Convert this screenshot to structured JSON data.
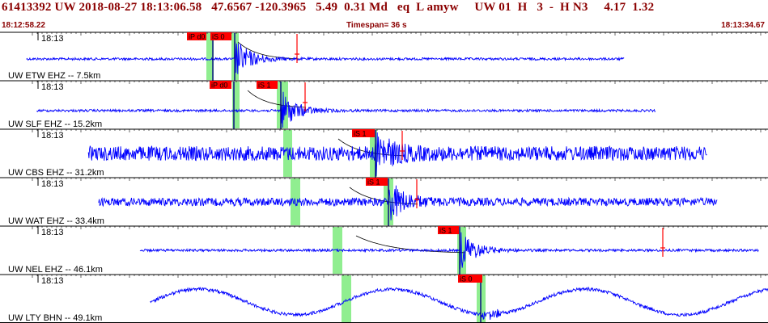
{
  "header": {
    "title": "61413392 UW 2018-08-27 18:13:06.58   47.6567 -120.3965   5.49  0.31 Md   eq  L amyw     UW 01  H   3  -  H N3     4.17  1.32",
    "start_time": "18:12:58.22",
    "timespan": "Timespan=  36 s",
    "end_time": "18:13:34.67"
  },
  "colors": {
    "title": "#8b0000",
    "trace": "#0000ff",
    "pick": "#ff0000",
    "window": "#90ee90"
  },
  "panels": [
    {
      "id": "ETW",
      "time_label": "18:13",
      "channel_label": "UW ETW EHZ -- 7.5km",
      "pick_labels": [
        "iP d0",
        "iS 0"
      ],
      "trace_start_s": 0.5,
      "trace_end_s": 29.5,
      "noise_amp": 1.5,
      "wave": "noise"
    },
    {
      "id": "SLF",
      "time_label": "18:13",
      "channel_label": "UW SLF EHZ -- 15.2km",
      "pick_labels": [
        "iP d0",
        "iS 1"
      ],
      "trace_start_s": 1.0,
      "trace_end_s": 31.0,
      "noise_amp": 1.5,
      "wave": "noise"
    },
    {
      "id": "CBS",
      "time_label": "18:13",
      "channel_label": "UW CBS EHZ -- 31.2km",
      "pick_labels": [
        "iS 1"
      ],
      "trace_start_s": 3.5,
      "trace_end_s": 33.5,
      "noise_amp": 9,
      "wave": "noise"
    },
    {
      "id": "WAT",
      "time_label": "18:13",
      "channel_label": "UW WAT EHZ -- 33.4km",
      "pick_labels": [
        "iS 1"
      ],
      "trace_start_s": 4.0,
      "trace_end_s": 34.0,
      "noise_amp": 5,
      "wave": "noise"
    },
    {
      "id": "NEL",
      "time_label": "18:13",
      "channel_label": "UW NEL EHZ -- 46.1km",
      "pick_labels": [
        "iS 1"
      ],
      "trace_start_s": 6.0,
      "trace_end_s": 36.0,
      "noise_amp": 1.5,
      "wave": "noise"
    },
    {
      "id": "LTY",
      "time_label": "18:13",
      "channel_label": "UW LTY BHN -- 49.1km",
      "pick_labels": [
        "iS 0"
      ],
      "trace_start_s": 6.5,
      "trace_end_s": 36.5,
      "noise_amp": 2,
      "wave": "long"
    }
  ]
}
